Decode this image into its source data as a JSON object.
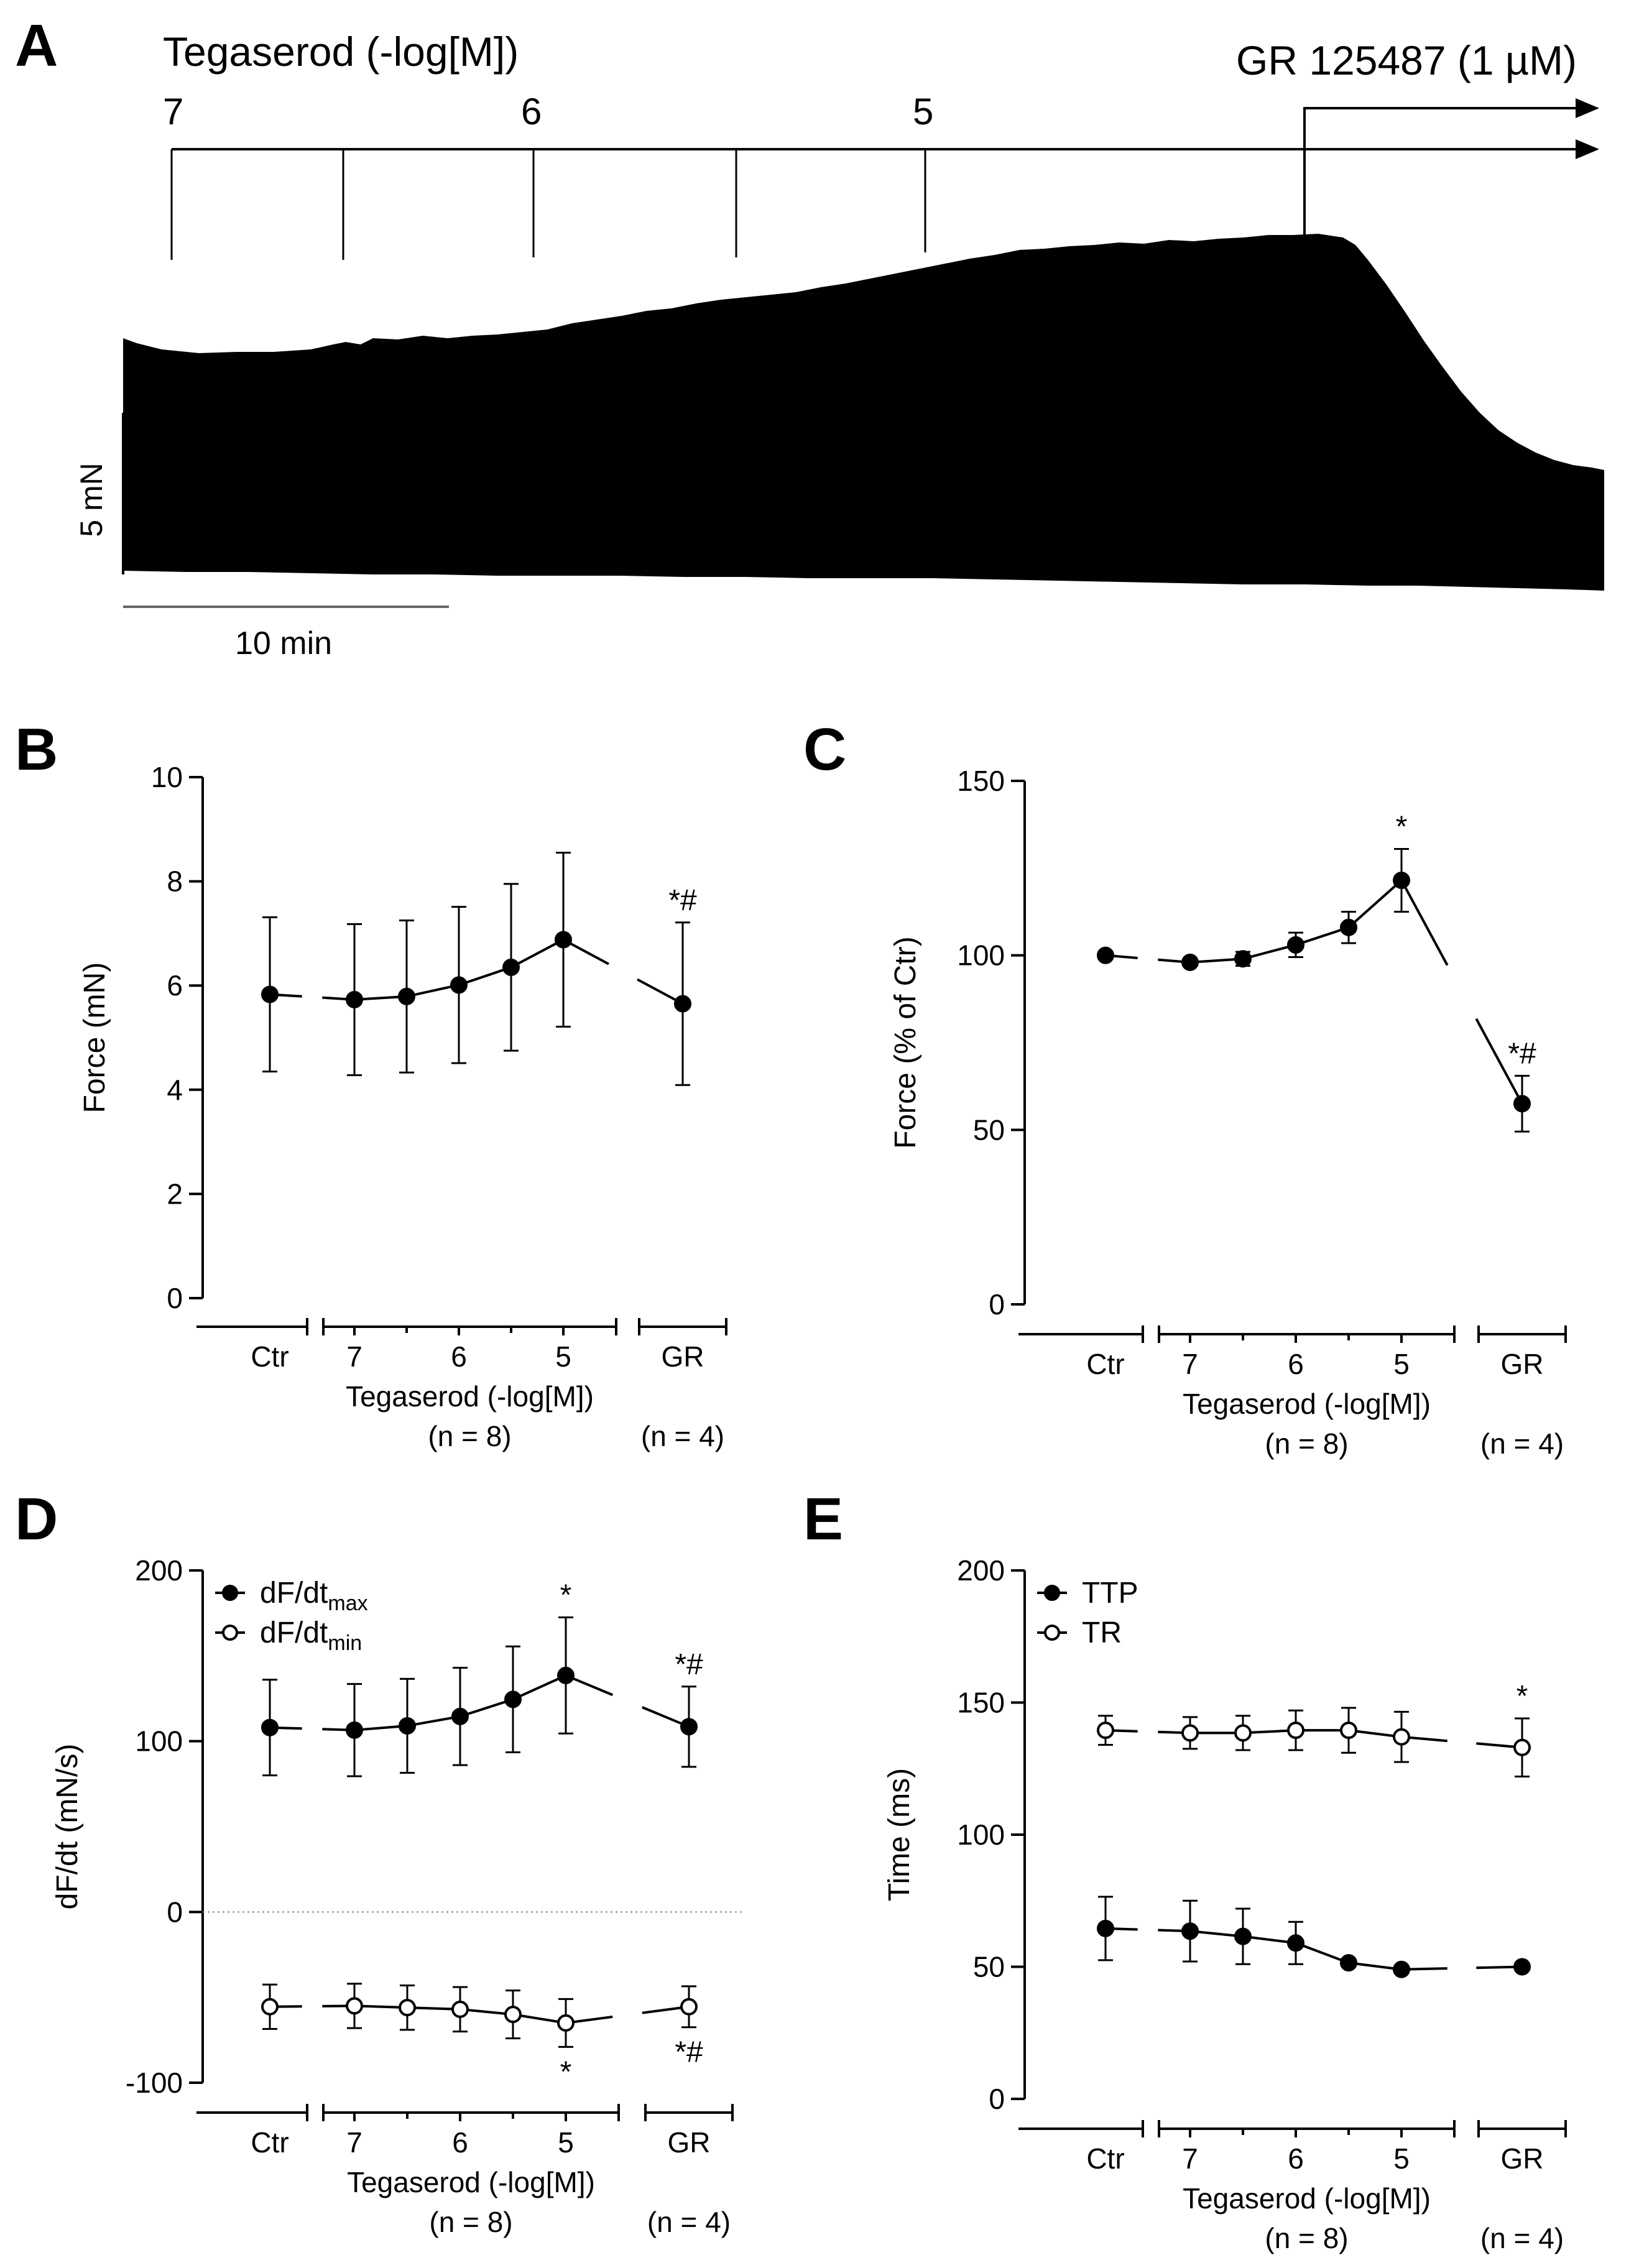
{
  "figure": {
    "panel_a": {
      "letter": "A",
      "title": "Tegaserod (-log[M])",
      "conc_labels": [
        "7",
        "6",
        "5"
      ],
      "gr_label": "GR 125487 (1 µM)",
      "scale_force": "5 mN",
      "scale_time": "10 min"
    }
  },
  "chart_data": [
    {
      "panel": "B",
      "type": "line",
      "ylabel": "Force (mN)",
      "ylim": [
        0,
        10
      ],
      "yticks": [
        0,
        2,
        4,
        6,
        8,
        10
      ],
      "x_groups": {
        "ctr": "Ctr",
        "tega": "Tegaserod (-log[M])",
        "tega_ticks": [
          "7",
          "6",
          "5"
        ],
        "gr": "GR",
        "n_tega": "(n = 8)",
        "n_gr": "(n = 4)"
      },
      "series": [
        {
          "filled": true,
          "points": [
            {
              "x": 0,
              "y": 5.83,
              "err": 1.48
            },
            {
              "x": 1,
              "y": 5.73,
              "err": 1.45
            },
            {
              "x": 1.5,
              "y": 5.79,
              "err": 1.46
            },
            {
              "x": 2,
              "y": 6.01,
              "err": 1.5
            },
            {
              "x": 2.5,
              "y": 6.35,
              "err": 1.6
            },
            {
              "x": 3,
              "y": 6.88,
              "err": 1.67
            },
            {
              "x": 4,
              "y": 5.65,
              "err": 1.56,
              "sig": "*#",
              "sig_pos": "above"
            }
          ]
        }
      ]
    },
    {
      "panel": "C",
      "type": "line",
      "ylabel": "Force (% of Ctr)",
      "ylim": [
        0,
        150
      ],
      "yticks": [
        0,
        50,
        100,
        150
      ],
      "x_groups": {
        "ctr": "Ctr",
        "tega": "Tegaserod (-log[M])",
        "tega_ticks": [
          "7",
          "6",
          "5"
        ],
        "gr": "GR",
        "n_tega": "(n = 8)",
        "n_gr": "(n = 4)"
      },
      "series": [
        {
          "filled": true,
          "points": [
            {
              "x": 0,
              "y": 100,
              "err": 0
            },
            {
              "x": 1,
              "y": 98,
              "err": 1
            },
            {
              "x": 1.5,
              "y": 99,
              "err": 2
            },
            {
              "x": 2,
              "y": 103,
              "err": 3.5
            },
            {
              "x": 2.5,
              "y": 108,
              "err": 4.5
            },
            {
              "x": 3,
              "y": 121.5,
              "err": 9
            },
            {
              "x": 4,
              "y": 57.5,
              "err": 8,
              "sig": "*#",
              "sig_pos": "above"
            }
          ],
          "sig_extra": [
            {
              "x": 3,
              "text": "*"
            }
          ]
        }
      ]
    },
    {
      "panel": "D",
      "type": "line",
      "ylabel": "dF/dt (mN/s)",
      "ylim": [
        -100,
        200
      ],
      "yticks": [
        -100,
        0,
        100,
        200
      ],
      "zero_line": true,
      "x_groups": {
        "ctr": "Ctr",
        "tega": "Tegaserod (-log[M])",
        "tega_ticks": [
          "7",
          "6",
          "5"
        ],
        "gr": "GR",
        "n_tega": "(n = 8)",
        "n_gr": "(n = 4)"
      },
      "legend": [
        {
          "base": "dF/dt",
          "sub": "max",
          "filled": true
        },
        {
          "base": "dF/dt",
          "sub": "min",
          "filled": false
        }
      ],
      "series": [
        {
          "filled": true,
          "points": [
            {
              "x": 0,
              "y": 108,
              "err": 28
            },
            {
              "x": 1,
              "y": 106.5,
              "err": 27
            },
            {
              "x": 1.5,
              "y": 109,
              "err": 27.5
            },
            {
              "x": 2,
              "y": 114.5,
              "err": 28.5
            },
            {
              "x": 2.5,
              "y": 124.5,
              "err": 31
            },
            {
              "x": 3,
              "y": 138.5,
              "err": 34,
              "sig": "*",
              "sig_pos": "above"
            },
            {
              "x": 4,
              "y": 108.5,
              "err": 23.5,
              "sig": "*#",
              "sig_pos": "above"
            }
          ]
        },
        {
          "filled": false,
          "points": [
            {
              "x": 0,
              "y": -55.5,
              "err": 13
            },
            {
              "x": 1,
              "y": -55,
              "err": 13
            },
            {
              "x": 1.5,
              "y": -56,
              "err": 13
            },
            {
              "x": 2,
              "y": -57,
              "err": 13
            },
            {
              "x": 2.5,
              "y": -60,
              "err": 14
            },
            {
              "x": 3,
              "y": -65,
              "err": 14,
              "sig": "*",
              "sig_pos": "below"
            },
            {
              "x": 4,
              "y": -55.5,
              "err": 12,
              "sig": "*#",
              "sig_pos": "below"
            }
          ]
        }
      ]
    },
    {
      "panel": "E",
      "type": "line",
      "ylabel": "Time (ms)",
      "ylim": [
        0,
        200
      ],
      "yticks": [
        0,
        50,
        100,
        150,
        200
      ],
      "x_groups": {
        "ctr": "Ctr",
        "tega": "Tegaserod (-log[M])",
        "tega_ticks": [
          "7",
          "6",
          "5"
        ],
        "gr": "GR",
        "n_tega": "(n = 8)",
        "n_gr": "(n = 4)"
      },
      "legend": [
        {
          "base": "TTP",
          "sub": "",
          "filled": true
        },
        {
          "base": "TR",
          "sub": "",
          "filled": false
        }
      ],
      "series": [
        {
          "filled": false,
          "points": [
            {
              "x": 0,
              "y": 139.5,
              "err": 5.5
            },
            {
              "x": 1,
              "y": 138.5,
              "err": 6
            },
            {
              "x": 1.5,
              "y": 138.5,
              "err": 6.5
            },
            {
              "x": 2,
              "y": 139.5,
              "err": 7.5
            },
            {
              "x": 2.5,
              "y": 139.5,
              "err": 8.5
            },
            {
              "x": 3,
              "y": 137,
              "err": 9.5
            },
            {
              "x": 4,
              "y": 133,
              "err": 11,
              "sig": "*",
              "sig_pos": "above"
            }
          ]
        },
        {
          "filled": true,
          "points": [
            {
              "x": 0,
              "y": 64.5,
              "err": 12
            },
            {
              "x": 1,
              "y": 63.5,
              "err": 11.5
            },
            {
              "x": 1.5,
              "y": 61.5,
              "err": 10.5
            },
            {
              "x": 2,
              "y": 59,
              "err": 8
            },
            {
              "x": 2.5,
              "y": 51.5,
              "err": 1.5
            },
            {
              "x": 3,
              "y": 49,
              "err": 1
            },
            {
              "x": 4,
              "y": 50,
              "err": 0
            }
          ]
        }
      ]
    }
  ]
}
